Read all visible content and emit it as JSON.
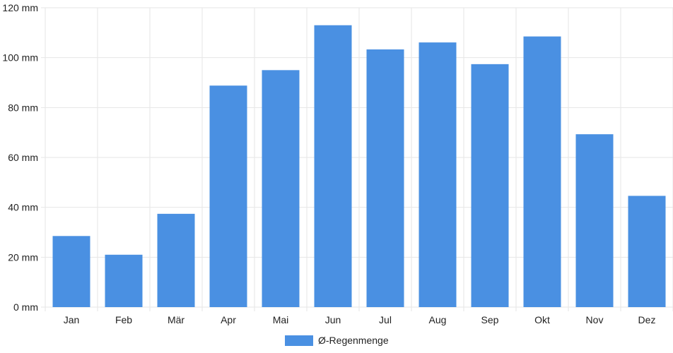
{
  "chart_data": {
    "type": "bar",
    "categories": [
      "Jan",
      "Feb",
      "Mär",
      "Apr",
      "Mai",
      "Jun",
      "Jul",
      "Aug",
      "Sep",
      "Okt",
      "Nov",
      "Dez"
    ],
    "series": [
      {
        "name": "Ø-Regenmenge",
        "values": [
          28.5,
          21,
          37.4,
          88.8,
          95,
          113,
          103.3,
          106.1,
          97.4,
          108.5,
          69.3,
          44.6
        ],
        "color": "#4a90e2"
      }
    ],
    "y_tick_labels": [
      "0 mm",
      "20 mm",
      "40 mm",
      "60 mm",
      "80 mm",
      "100 mm",
      "120 mm"
    ],
    "ylim": [
      0,
      120
    ],
    "y_tick_step": 20,
    "grid": true,
    "legend_position": "bottom-center",
    "gridline_color": "#e6e6e6"
  }
}
